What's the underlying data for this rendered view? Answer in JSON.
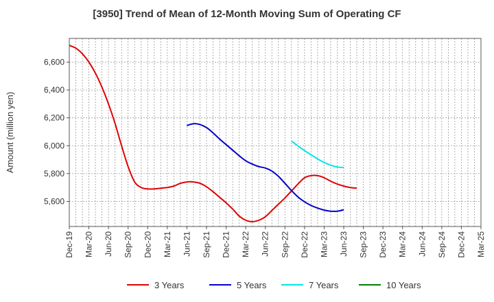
{
  "chart_data": {
    "type": "line",
    "title": "[3950]  Trend of Mean of 12-Month Moving Sum of Operating CF",
    "xlabel": "",
    "ylabel": "Amount (million yen)",
    "ylim": [
      5420,
      6770
    ],
    "y_ticks": [
      5600,
      5800,
      6000,
      6200,
      6400,
      6600
    ],
    "y_tick_labels": [
      "5,600",
      "5,800",
      "6,000",
      "6,200",
      "6,400",
      "6,600"
    ],
    "x_tick_labels": [
      "Dec-19",
      "Mar-20",
      "Jun-20",
      "Sep-20",
      "Dec-20",
      "Mar-21",
      "Jun-21",
      "Sep-21",
      "Dec-21",
      "Mar-22",
      "Jun-22",
      "Sep-22",
      "Dec-22",
      "Mar-23",
      "Jun-23",
      "Sep-23",
      "Dec-23",
      "Mar-24",
      "Jun-24",
      "Sep-24",
      "Dec-24",
      "Mar-25"
    ],
    "grid": true,
    "legend_position": "bottom",
    "series": [
      {
        "name": "3 Years",
        "color": "#e00000",
        "points": [
          [
            0,
            6720
          ],
          [
            1,
            6700
          ],
          [
            2,
            6660
          ],
          [
            3,
            6600
          ],
          [
            4,
            6520
          ],
          [
            5,
            6420
          ],
          [
            6,
            6300
          ],
          [
            7,
            6160
          ],
          [
            8,
            6000
          ],
          [
            9,
            5850
          ],
          [
            10,
            5740
          ],
          [
            11,
            5700
          ],
          [
            12,
            5690
          ],
          [
            13,
            5690
          ],
          [
            14,
            5695
          ],
          [
            15,
            5700
          ],
          [
            16,
            5710
          ],
          [
            17,
            5730
          ],
          [
            18,
            5740
          ],
          [
            19,
            5740
          ],
          [
            20,
            5730
          ],
          [
            21,
            5705
          ],
          [
            22,
            5670
          ],
          [
            23,
            5630
          ],
          [
            24,
            5590
          ],
          [
            25,
            5545
          ],
          [
            26,
            5495
          ],
          [
            27,
            5465
          ],
          [
            28,
            5455
          ],
          [
            29,
            5465
          ],
          [
            30,
            5490
          ],
          [
            31,
            5535
          ],
          [
            32,
            5580
          ],
          [
            33,
            5625
          ],
          [
            34,
            5675
          ],
          [
            35,
            5725
          ],
          [
            36,
            5770
          ],
          [
            37,
            5785
          ],
          [
            38,
            5785
          ],
          [
            39,
            5770
          ],
          [
            40,
            5745
          ],
          [
            41,
            5725
          ],
          [
            42,
            5710
          ],
          [
            43,
            5700
          ],
          [
            44,
            5695
          ]
        ]
      },
      {
        "name": "5 Years",
        "color": "#0000cc",
        "points": [
          [
            18,
            6145
          ],
          [
            19,
            6158
          ],
          [
            20,
            6152
          ],
          [
            21,
            6130
          ],
          [
            22,
            6092
          ],
          [
            23,
            6048
          ],
          [
            24,
            6008
          ],
          [
            25,
            5968
          ],
          [
            26,
            5928
          ],
          [
            27,
            5892
          ],
          [
            28,
            5868
          ],
          [
            29,
            5850
          ],
          [
            30,
            5840
          ],
          [
            31,
            5818
          ],
          [
            32,
            5780
          ],
          [
            33,
            5730
          ],
          [
            34,
            5678
          ],
          [
            35,
            5632
          ],
          [
            36,
            5597
          ],
          [
            37,
            5571
          ],
          [
            38,
            5552
          ],
          [
            39,
            5538
          ],
          [
            40,
            5530
          ],
          [
            41,
            5530
          ],
          [
            42,
            5540
          ]
        ]
      },
      {
        "name": "7 Years",
        "color": "#00e5e5",
        "points": [
          [
            34,
            6033
          ],
          [
            35,
            5998
          ],
          [
            36,
            5965
          ],
          [
            37,
            5935
          ],
          [
            38,
            5905
          ],
          [
            39,
            5880
          ],
          [
            40,
            5860
          ],
          [
            41,
            5847
          ],
          [
            42,
            5843
          ]
        ]
      },
      {
        "name": "10 Years",
        "color": "#007f00",
        "points": []
      }
    ]
  }
}
